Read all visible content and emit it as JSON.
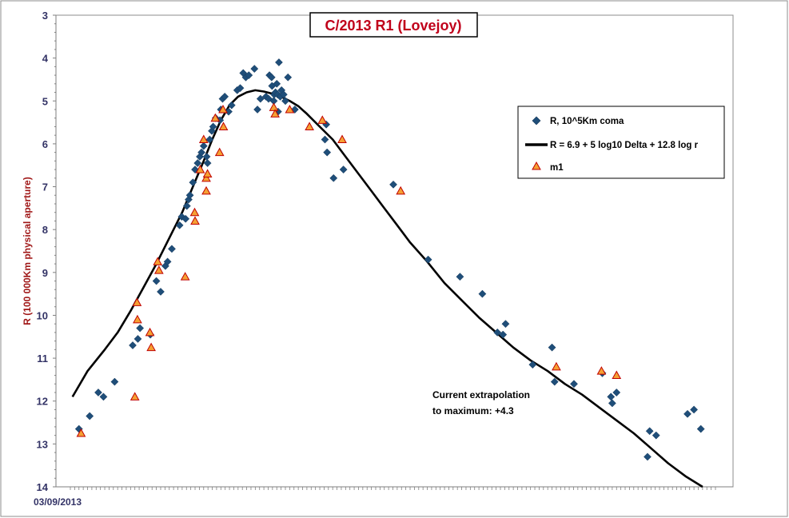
{
  "chart_data": {
    "type": "scatter",
    "title": "C/2013 R1 (Lovejoy)",
    "ylabel": "R (100 000Km physical aperture)",
    "xlabel": "",
    "x_tick_label": "03/09/2013",
    "ylim": [
      3,
      14
    ],
    "y_inverted": true,
    "yticks": [
      3,
      4,
      5,
      6,
      7,
      8,
      9,
      10,
      11,
      12,
      13,
      14
    ],
    "x_units": "days since 03/09/2013",
    "xlim": [
      0,
      150
    ],
    "grid": false,
    "legend_position": "top-right",
    "annotation": [
      "Current extrapolation",
      "to maximum: +4.3"
    ],
    "colors": {
      "coma": "#1f4e79",
      "model": "#000000",
      "m1_fill": "#f5a033",
      "m1_edge": "#c00000",
      "title": "#c0001a"
    },
    "series": [
      {
        "name": "R, 10^5Km coma",
        "kind": "scatter",
        "marker": "diamond",
        "points": [
          [
            2,
            12.65
          ],
          [
            4.5,
            12.35
          ],
          [
            6.5,
            11.8
          ],
          [
            7.7,
            11.9
          ],
          [
            10.3,
            11.55
          ],
          [
            14.5,
            10.7
          ],
          [
            15.7,
            10.55
          ],
          [
            16.2,
            10.3
          ],
          [
            18.6,
            10.45
          ],
          [
            20,
            9.2
          ],
          [
            21,
            9.45
          ],
          [
            22.1,
            8.85
          ],
          [
            22.6,
            8.75
          ],
          [
            23.6,
            8.45
          ],
          [
            25.4,
            7.9
          ],
          [
            25.9,
            7.7
          ],
          [
            26.8,
            7.75
          ],
          [
            27.1,
            7.45
          ],
          [
            27.5,
            7.3
          ],
          [
            27.8,
            7.2
          ],
          [
            28.5,
            6.9
          ],
          [
            29,
            6.6
          ],
          [
            29.6,
            6.45
          ],
          [
            30.1,
            6.3
          ],
          [
            30.5,
            6.2
          ],
          [
            31,
            6.05
          ],
          [
            31.7,
            6.3
          ],
          [
            31.9,
            6.45
          ],
          [
            32.4,
            5.9
          ],
          [
            32.9,
            5.7
          ],
          [
            33.2,
            5.6
          ],
          [
            33.8,
            5.4
          ],
          [
            34.8,
            5.45
          ],
          [
            35,
            5.2
          ],
          [
            35.4,
            4.95
          ],
          [
            35.9,
            4.9
          ],
          [
            36.8,
            5.25
          ],
          [
            37.5,
            5.1
          ],
          [
            38.8,
            4.75
          ],
          [
            39.5,
            4.7
          ],
          [
            40.2,
            4.35
          ],
          [
            40.8,
            4.45
          ],
          [
            41.5,
            4.4
          ],
          [
            42.8,
            4.25
          ],
          [
            43.5,
            5.2
          ],
          [
            44.2,
            4.95
          ],
          [
            45.5,
            4.9
          ],
          [
            46.1,
            4.95
          ],
          [
            46.3,
            4.4
          ],
          [
            46.8,
            4.45
          ],
          [
            46.9,
            4.65
          ],
          [
            47.3,
            5.0
          ],
          [
            47.4,
            4.85
          ],
          [
            47.7,
            4.8
          ],
          [
            48,
            4.6
          ],
          [
            48.2,
            4.85
          ],
          [
            48.3,
            5.25
          ],
          [
            48.5,
            4.1
          ],
          [
            48.8,
            4.9
          ],
          [
            49.1,
            4.75
          ],
          [
            49.6,
            4.85
          ],
          [
            50,
            5.0
          ],
          [
            50.6,
            4.45
          ],
          [
            52.2,
            5.2
          ],
          [
            59.2,
            5.9
          ],
          [
            59.7,
            6.2
          ],
          [
            59.5,
            5.55
          ],
          [
            61.2,
            6.8
          ],
          [
            63.5,
            6.6
          ],
          [
            75.1,
            6.95
          ],
          [
            83.2,
            8.7
          ],
          [
            90.6,
            9.1
          ],
          [
            95.8,
            9.5
          ],
          [
            99.3,
            10.4
          ],
          [
            100.6,
            10.45
          ],
          [
            101.2,
            10.2
          ],
          [
            107.5,
            11.15
          ],
          [
            112,
            10.75
          ],
          [
            112.6,
            11.55
          ],
          [
            117.1,
            11.6
          ],
          [
            123.7,
            11.35
          ],
          [
            125.7,
            11.9
          ],
          [
            126,
            12.05
          ],
          [
            127,
            11.8
          ],
          [
            134.2,
            13.3
          ],
          [
            134.7,
            12.7
          ],
          [
            136.2,
            12.8
          ],
          [
            143.5,
            12.3
          ],
          [
            145,
            12.2
          ],
          [
            146.6,
            12.65
          ]
        ]
      },
      {
        "name": "R = 6.9 + 5 log10 Delta + 12.8  log r",
        "kind": "line",
        "points": [
          [
            0.5,
            11.9
          ],
          [
            4,
            11.3
          ],
          [
            8,
            10.8
          ],
          [
            11,
            10.4
          ],
          [
            14,
            9.9
          ],
          [
            17,
            9.35
          ],
          [
            20,
            8.8
          ],
          [
            23,
            8.2
          ],
          [
            26,
            7.6
          ],
          [
            28.5,
            7.0
          ],
          [
            31,
            6.4
          ],
          [
            33,
            5.9
          ],
          [
            35,
            5.45
          ],
          [
            37,
            5.1
          ],
          [
            39,
            4.9
          ],
          [
            41,
            4.8
          ],
          [
            43,
            4.75
          ],
          [
            45,
            4.78
          ],
          [
            47,
            4.83
          ],
          [
            49,
            4.9
          ],
          [
            51,
            5.0
          ],
          [
            53,
            5.12
          ],
          [
            55,
            5.3
          ],
          [
            58,
            5.6
          ],
          [
            61,
            5.9
          ],
          [
            64,
            6.3
          ],
          [
            67,
            6.7
          ],
          [
            70,
            7.1
          ],
          [
            73,
            7.5
          ],
          [
            76,
            7.9
          ],
          [
            79,
            8.3
          ],
          [
            83,
            8.75
          ],
          [
            87,
            9.25
          ],
          [
            91,
            9.65
          ],
          [
            95,
            10.05
          ],
          [
            99,
            10.4
          ],
          [
            103,
            10.75
          ],
          [
            107,
            11.05
          ],
          [
            111,
            11.3
          ],
          [
            115,
            11.6
          ],
          [
            119,
            11.85
          ],
          [
            123,
            12.15
          ],
          [
            127,
            12.45
          ],
          [
            131,
            12.75
          ],
          [
            135,
            13.1
          ],
          [
            139,
            13.45
          ],
          [
            143,
            13.75
          ],
          [
            147,
            14.0
          ]
        ]
      },
      {
        "name": "m1",
        "kind": "scatter",
        "marker": "triangle",
        "points": [
          [
            2.5,
            12.75
          ],
          [
            15,
            11.9
          ],
          [
            15.5,
            9.7
          ],
          [
            15.6,
            10.1
          ],
          [
            18.5,
            10.4
          ],
          [
            18.8,
            10.75
          ],
          [
            20.3,
            8.75
          ],
          [
            20.6,
            8.95
          ],
          [
            26.7,
            9.1
          ],
          [
            28.9,
            7.6
          ],
          [
            29,
            7.8
          ],
          [
            30.2,
            6.6
          ],
          [
            31,
            5.9
          ],
          [
            31.6,
            6.8
          ],
          [
            31.6,
            7.1
          ],
          [
            31.9,
            6.7
          ],
          [
            33.7,
            5.4
          ],
          [
            34.7,
            6.2
          ],
          [
            35.5,
            5.2
          ],
          [
            35.6,
            5.6
          ],
          [
            47.3,
            5.15
          ],
          [
            47.6,
            5.3
          ],
          [
            51,
            5.2
          ],
          [
            55.6,
            5.6
          ],
          [
            58.6,
            5.45
          ],
          [
            63.2,
            5.9
          ],
          [
            76.8,
            7.1
          ],
          [
            113,
            11.2
          ],
          [
            123.5,
            11.3
          ],
          [
            127,
            11.4
          ]
        ]
      }
    ]
  }
}
